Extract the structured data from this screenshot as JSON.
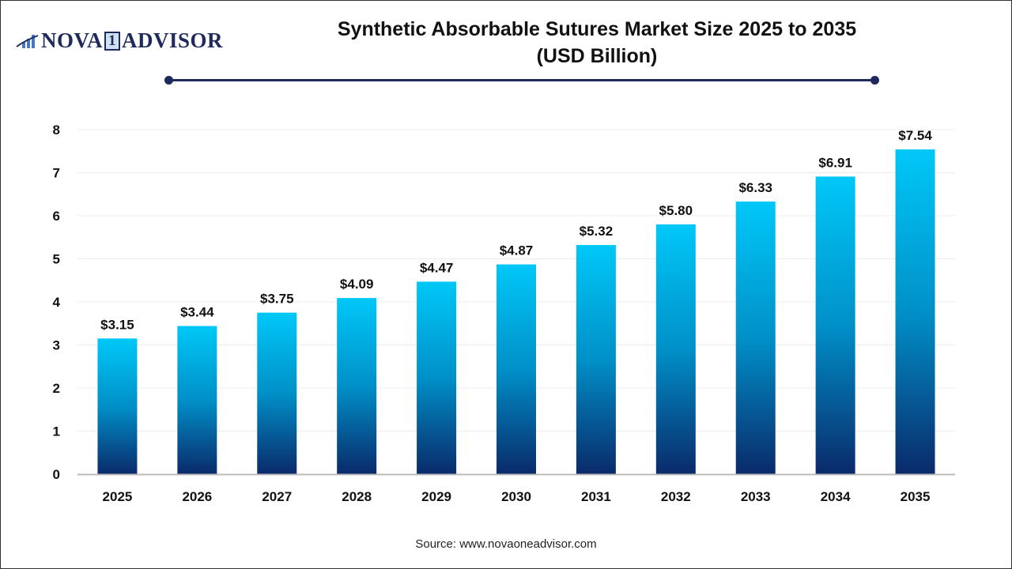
{
  "logo": {
    "text_left": "NOVA",
    "text_mid": "1",
    "text_right": "ADVISOR"
  },
  "title_line1": "Synthetic Absorbable Sutures Market Size 2025 to 2035",
  "title_line2": "(USD Billion)",
  "source": "Source: www.novaoneadvisor.com",
  "colors": {
    "bar_top": "#00c8f8",
    "bar_bottom": "#0a2a6a",
    "accent": "#1f2a5c"
  },
  "chart_data": {
    "type": "bar",
    "categories": [
      "2025",
      "2026",
      "2027",
      "2028",
      "2029",
      "2030",
      "2031",
      "2032",
      "2033",
      "2034",
      "2035"
    ],
    "values": [
      3.15,
      3.44,
      3.75,
      4.09,
      4.47,
      4.87,
      5.32,
      5.8,
      6.33,
      6.91,
      7.54
    ],
    "data_labels": [
      "$3.15",
      "$3.44",
      "$3.75",
      "$4.09",
      "$4.47",
      "$4.87",
      "$5.32",
      "$5.80",
      "$6.33",
      "$6.91",
      "$7.54"
    ],
    "title": "Synthetic Absorbable Sutures Market Size 2025 to 2035 (USD Billion)",
    "xlabel": "",
    "ylabel": "",
    "ylim": [
      0,
      8
    ],
    "yticks": [
      0,
      1,
      2,
      3,
      4,
      5,
      6,
      7,
      8
    ],
    "grid": true,
    "legend": "none"
  }
}
